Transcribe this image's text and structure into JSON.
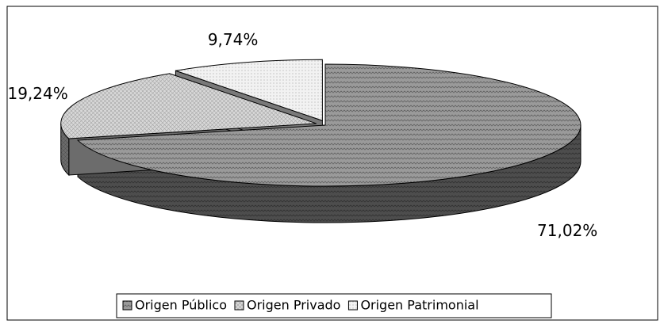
{
  "chart_data": {
    "type": "pie",
    "categories": [
      "Origen Público",
      "Origen Privado",
      "Origen Patrimonial"
    ],
    "values": [
      71.02,
      19.24,
      9.74
    ],
    "value_labels": [
      "71,02%",
      "19,24%",
      "9,74%"
    ],
    "colors": [
      "#9a9a9a",
      "#d8d8d8",
      "#f2f2f2"
    ],
    "legend": "bottom"
  }
}
